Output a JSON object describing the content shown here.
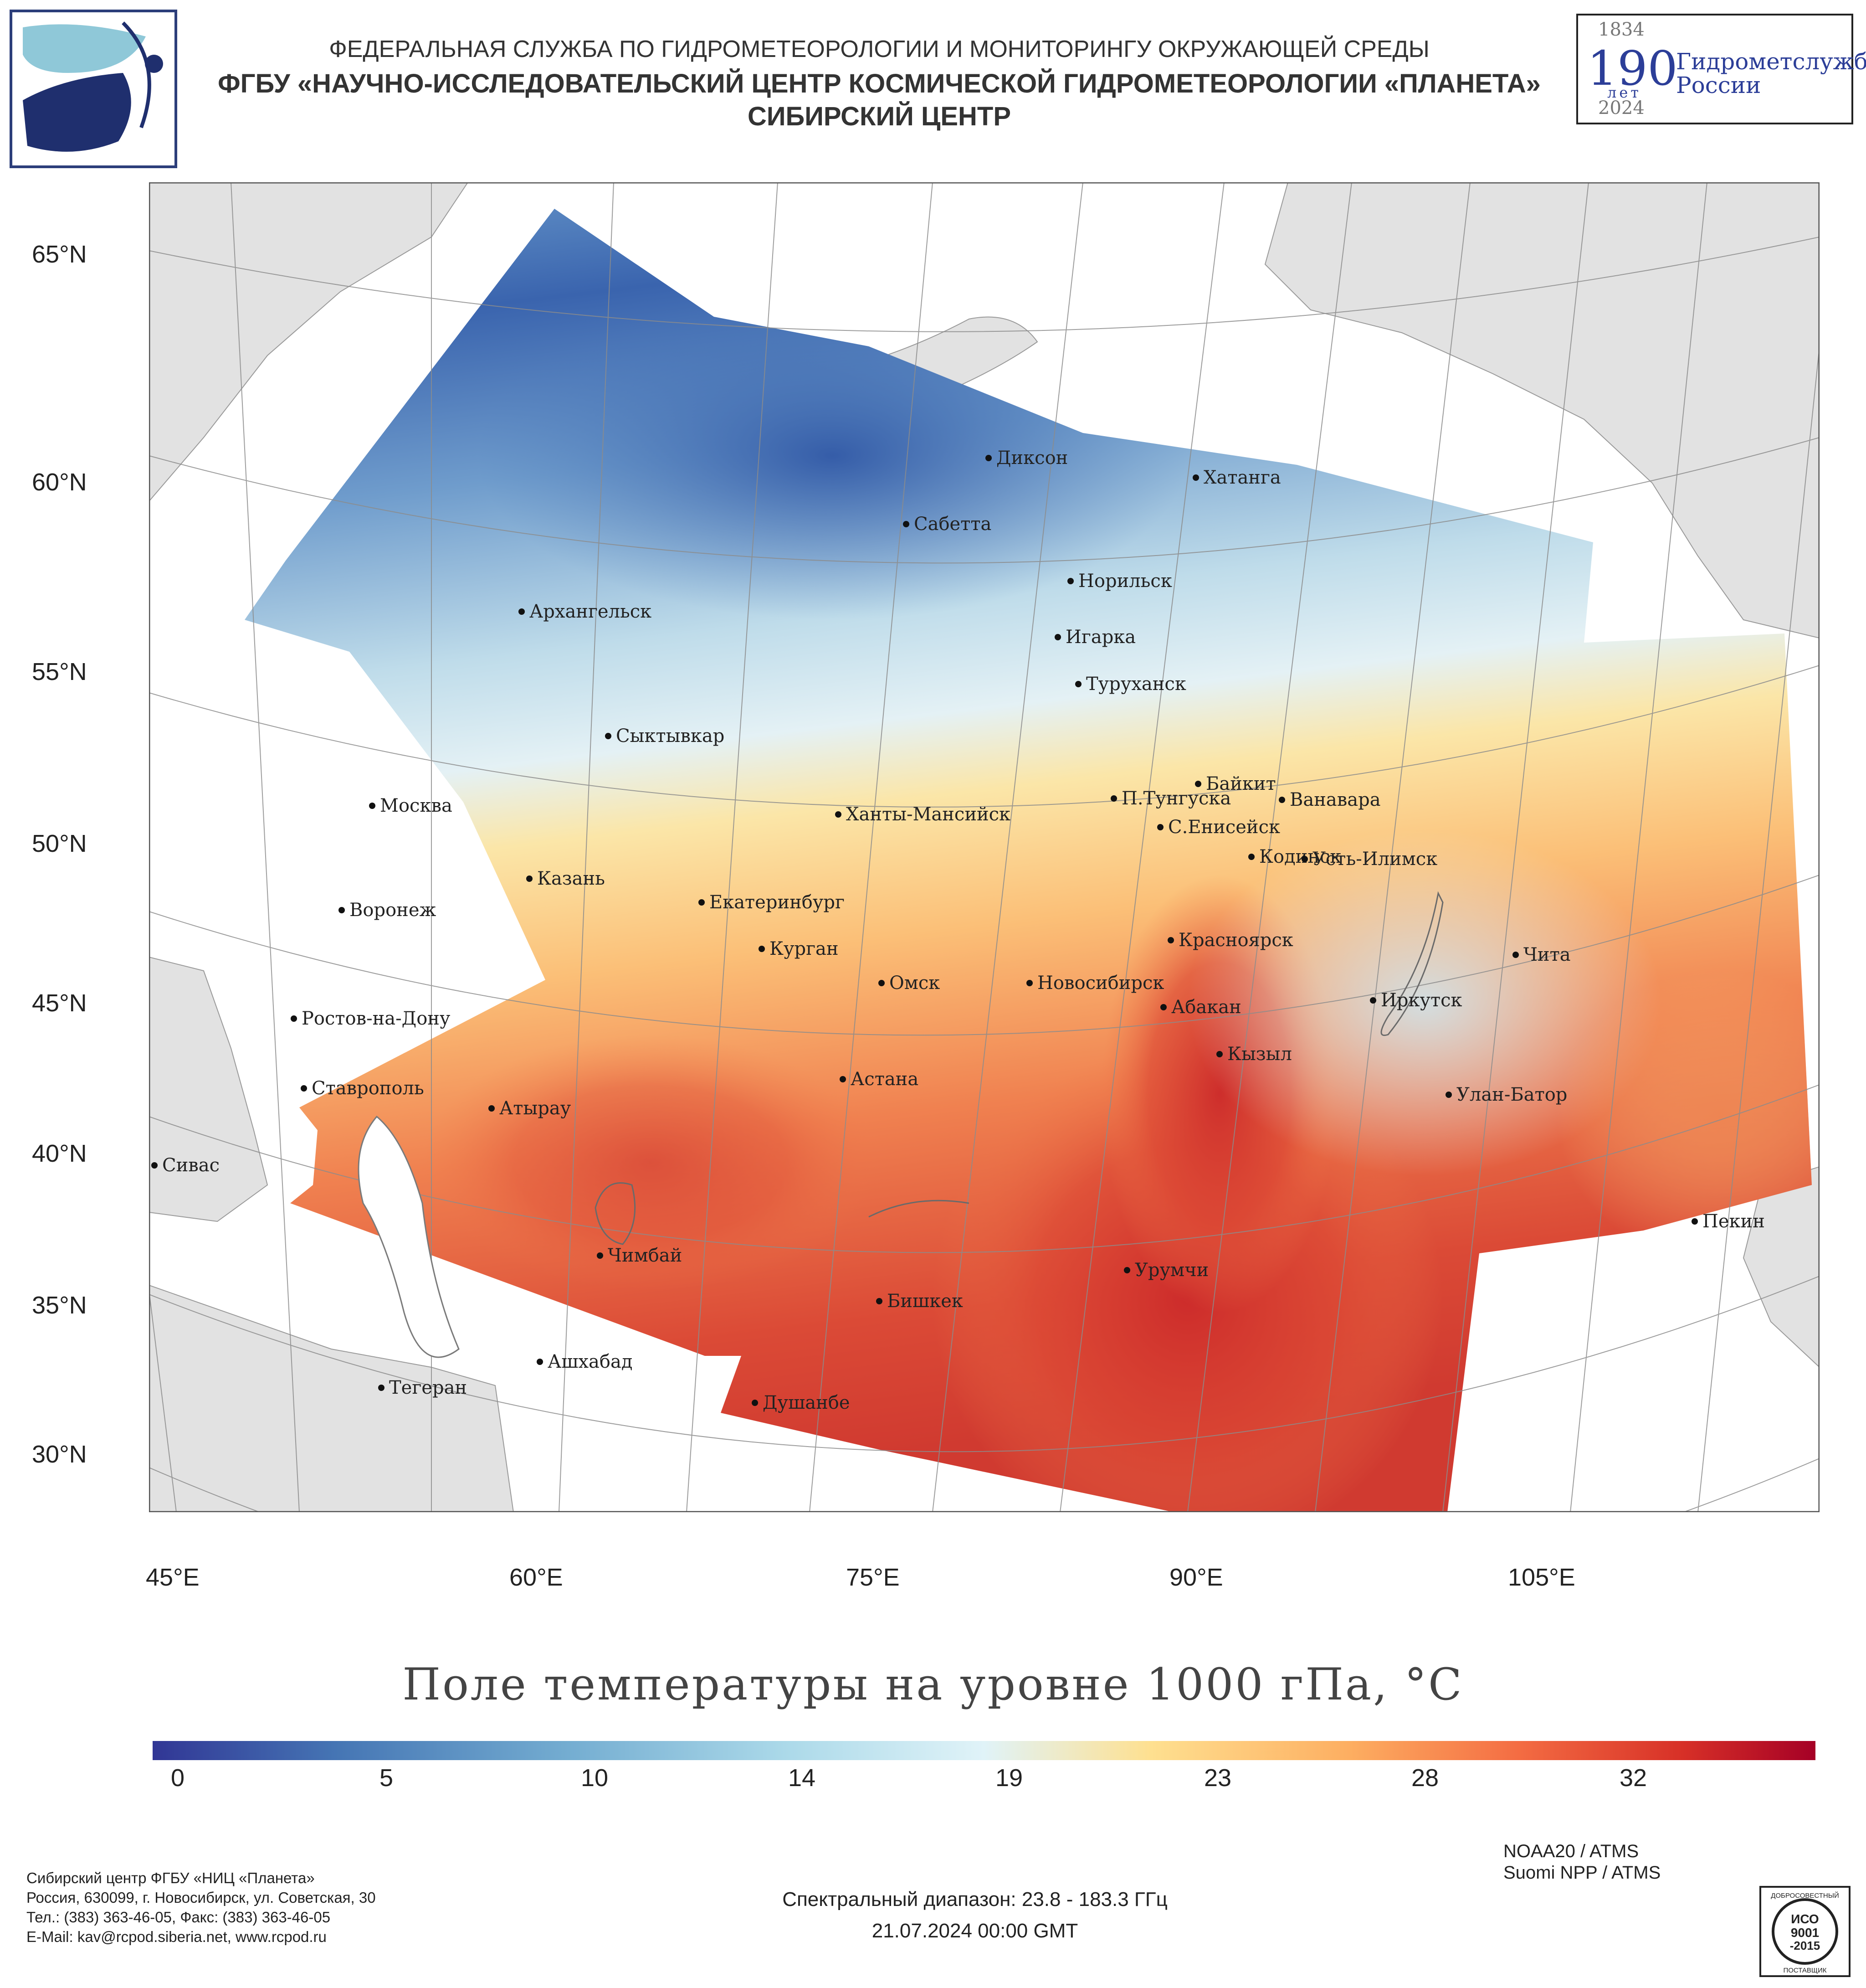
{
  "header": {
    "line1": "ФЕДЕРАЛЬНАЯ СЛУЖБА ПО ГИДРОМЕТЕОРОЛОГИИ И МОНИТОРИНГУ ОКРУЖАЮЩЕЙ СРЕДЫ",
    "line2": "ФГБУ «НАУЧНО-ИССЛЕДОВАТЕЛЬСКИЙ ЦЕНТР КОСМИЧЕСКОЙ ГИДРОМЕТЕОРОЛОГИИ «ПЛАНЕТА»",
    "line3": "СИБИРСКИЙ ЦЕНТР"
  },
  "anniversary": {
    "year_start": "1834",
    "number": "190",
    "unit": "лет",
    "text_line1": "Гидрометслужбе",
    "text_line2": "России",
    "year_end": "2024"
  },
  "map": {
    "lat_labels": [
      "65°N",
      "60°N",
      "55°N",
      "50°N",
      "45°N",
      "40°N",
      "35°N",
      "30°N"
    ],
    "lon_labels": [
      "45°E",
      "60°E",
      "75°E",
      "90°E",
      "105°E"
    ],
    "cities": [
      "Диксон",
      "Хатанга",
      "Сабетта",
      "Норильск",
      "Архангельск",
      "Игарка",
      "Туруханск",
      "Сыктывкар",
      "Байкит",
      "Москва",
      "П.Тунгуска",
      "Ванавара",
      "Ханты-Мансийск",
      "С.Енисейск",
      "Кодинск",
      "Усть-Илимск",
      "Казань",
      "Екатеринбург",
      "Воронеж",
      "Красноярск",
      "Курган",
      "Чита",
      "Омск",
      "Новосибирск",
      "Иркутск",
      "Ростов-на-Дону",
      "Абакан",
      "Кызыл",
      "Ставрополь",
      "Астана",
      "Улан-Батор",
      "Атырау",
      "Сивас",
      "Пекин",
      "Чимбай",
      "Урумчи",
      "Бишкек",
      "Ашхабад",
      "Тегеран",
      "Душанбе"
    ],
    "colors": {
      "land": "#e2e2e2",
      "water": "#ffffff",
      "cold": "#3056a8",
      "warm": "#c8292e"
    }
  },
  "legend": {
    "title": "Поле температуры на уровне 1000 гПа, °C",
    "ticks": [
      "0",
      "5",
      "10",
      "14",
      "19",
      "23",
      "28",
      "32"
    ],
    "scale": [
      "#313695",
      "#4575b4",
      "#74add1",
      "#abd9e9",
      "#e0f3f8",
      "#fee090",
      "#fdae61",
      "#f46d43",
      "#d73027",
      "#a50026"
    ]
  },
  "footer": {
    "org_line1": "Сибирский центр ФГБУ «НИЦ «Планета»",
    "org_line2": "Россия, 630099, г. Новосибирск, ул. Советская, 30",
    "org_line3": "Тел.: (383) 363-46-05, Факс: (383) 363-46-05",
    "org_line4": "E-Mail: kav@rcpod.siberia.net, www.rcpod.ru",
    "spectral": "Спектральный диапазон: 23.8 - 183.3 ГГц",
    "datetime": "21.07.2024 00:00 GMT",
    "sensor1": "NOAA20 / ATMS",
    "sensor2": "Suomi NPP / ATMS",
    "iso_top": "ДОБРОСОВЕСТНЫЙ",
    "iso_main1": "ИСО",
    "iso_main2": "9001",
    "iso_main3": "-2015",
    "iso_bottom": "ПОСТАВЩИК"
  }
}
